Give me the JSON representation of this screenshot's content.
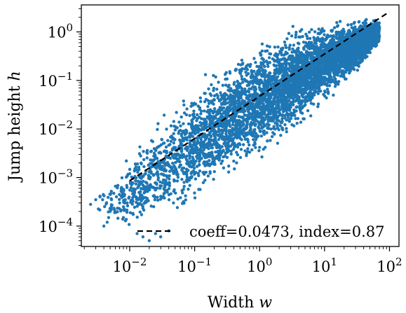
{
  "chart_data": {
    "type": "scatter",
    "title": "",
    "xlabel": "Width w",
    "ylabel": "Jump height h",
    "xscale": "log",
    "yscale": "log",
    "xlim": [
      0.0018,
      140
    ],
    "ylim": [
      3.8e-05,
      3.6
    ],
    "grid": false,
    "legend": {
      "placement": "lower-right",
      "entry": "coeff=0.0473, index=0.87"
    },
    "x_ticks": [
      {
        "value": 0.01,
        "base": "10",
        "exp": "−2"
      },
      {
        "value": 0.1,
        "base": "10",
        "exp": "−1"
      },
      {
        "value": 1,
        "base": "10",
        "exp": "0"
      },
      {
        "value": 10,
        "base": "10",
        "exp": "1"
      },
      {
        "value": 100,
        "base": "10",
        "exp": "2"
      }
    ],
    "y_ticks": [
      {
        "value": 0.0001,
        "base": "10",
        "exp": "−4"
      },
      {
        "value": 0.001,
        "base": "10",
        "exp": "−3"
      },
      {
        "value": 0.01,
        "base": "10",
        "exp": "−2"
      },
      {
        "value": 0.1,
        "base": "10",
        "exp": "−1"
      },
      {
        "value": 1,
        "base": "10",
        "exp": "0"
      }
    ],
    "fit": {
      "coeff": 0.0473,
      "index": 0.87,
      "x_range": [
        0.01,
        100
      ]
    },
    "scatter_series": {
      "color": "#1f77b4",
      "envelope_upper": [
        [
          0.003,
          0.0006
        ],
        [
          0.005,
          0.0009
        ],
        [
          0.01,
          0.0035
        ],
        [
          0.02,
          0.012
        ],
        [
          0.05,
          0.045
        ],
        [
          0.1,
          0.1
        ],
        [
          0.3,
          0.3
        ],
        [
          1,
          0.8
        ],
        [
          3,
          1.4
        ],
        [
          10,
          1.9
        ],
        [
          30,
          2.1
        ],
        [
          70,
          2.0
        ]
      ],
      "envelope_lower": [
        [
          0.003,
          0.00012
        ],
        [
          0.005,
          9e-05
        ],
        [
          0.01,
          8e-05
        ],
        [
          0.02,
          7.5e-05
        ],
        [
          0.05,
          0.0001
        ],
        [
          0.1,
          0.0002
        ],
        [
          0.3,
          0.0006
        ],
        [
          1,
          0.002
        ],
        [
          3,
          0.006
        ],
        [
          10,
          0.03
        ],
        [
          30,
          0.12
        ],
        [
          70,
          0.5
        ]
      ],
      "outliers": [
        [
          0.0025,
          0.00028
        ],
        [
          0.003,
          0.00035
        ],
        [
          0.0035,
          0.0004
        ],
        [
          0.004,
          0.0001
        ],
        [
          0.0045,
          0.00012
        ],
        [
          0.005,
          0.0002
        ],
        [
          0.007,
          0.0003
        ],
        [
          0.008,
          0.00015
        ],
        [
          0.01,
          0.0012
        ],
        [
          0.012,
          0.0015
        ],
        [
          0.013,
          7e-05
        ],
        [
          0.016,
          6e-05
        ],
        [
          0.02,
          5e-05
        ],
        [
          0.025,
          7e-05
        ],
        [
          0.03,
          6e-05
        ],
        [
          0.04,
          8e-05
        ]
      ]
    }
  }
}
